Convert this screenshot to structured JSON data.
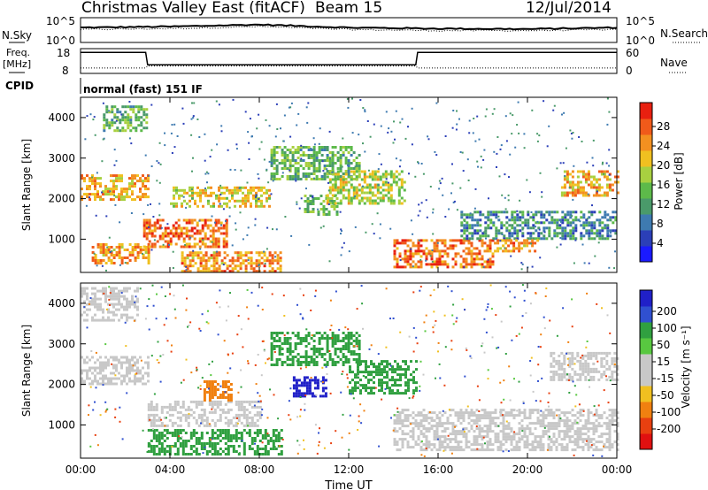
{
  "header": {
    "station": "Christmas Valley East (fitACF)",
    "beam": "Beam 15",
    "date": "12/Jul/2014"
  },
  "sky_panel": {
    "left_label": "N.Sky",
    "right_label": "N.Search",
    "left_ticks": [
      "10^5",
      "10^0"
    ],
    "right_ticks": [
      "10^5",
      "10^0"
    ]
  },
  "freq_panel": {
    "left_label_1": "Freq.",
    "left_label_2": "[MHz]",
    "right_label": "Nave",
    "left_ticks": [
      "18",
      "8"
    ],
    "right_ticks": [
      "60",
      "0"
    ]
  },
  "cpid": {
    "label": "CPID",
    "value": "normal (fast) 151 IF"
  },
  "power_panel": {
    "ylabel": "Slant Range [km]",
    "yticks": [
      "4000",
      "3000",
      "2000",
      "1000"
    ],
    "colorbar_label": "Power [dB]",
    "colorbar_ticks": [
      "28",
      "24",
      "20",
      "16",
      "12",
      "8",
      "4"
    ],
    "colors": [
      "#1a1aff",
      "#2b3fb8",
      "#3e7ab0",
      "#4a9a6a",
      "#5dba4a",
      "#a8d040",
      "#f0c020",
      "#f39020",
      "#f05a1a",
      "#e82010"
    ]
  },
  "velocity_panel": {
    "ylabel": "Slant Range [km]",
    "yticks": [
      "4000",
      "3000",
      "2000",
      "1000"
    ],
    "colorbar_label": "Velocity [m s⁻¹]",
    "colorbar_ticks": [
      "200",
      "100",
      "50",
      "15",
      "-15",
      "-50",
      "-100",
      "-200"
    ],
    "colors": [
      "#2020c8",
      "#3050d0",
      "#30a040",
      "#58c840",
      "#c8c8c8",
      "#c8c8c8",
      "#f0c020",
      "#f08010",
      "#e84010",
      "#e01010"
    ]
  },
  "x_axis": {
    "ticks": [
      "00:00",
      "04:00",
      "08:00",
      "12:00",
      "16:00",
      "20:00",
      "00:00"
    ],
    "label": "Time UT"
  },
  "chart_data": [
    {
      "type": "line",
      "title": "N.Sky / N.Search",
      "x": [
        "00:00",
        "04:00",
        "08:00",
        "12:00",
        "16:00",
        "20:00",
        "24:00"
      ],
      "series": [
        {
          "name": "N.Sky",
          "values": [
            3.0,
            3.2,
            3.6,
            3.0,
            2.8,
            2.7,
            3.0
          ]
        },
        {
          "name": "N.Search",
          "values": [
            2.6,
            2.8,
            3.2,
            2.6,
            2.4,
            2.4,
            2.6
          ]
        }
      ]
    },
    {
      "type": "line",
      "title": "Freq. [MHz] / Nave",
      "x": [
        "00:00",
        "02:55",
        "03:00",
        "15:00",
        "15:05",
        "24:00"
      ],
      "series": [
        {
          "name": "Freq.",
          "values": [
            16.5,
            16.5,
            11.5,
            11.5,
            16.5,
            16.5
          ]
        },
        {
          "name": "Nave",
          "values": [
            13,
            13,
            18,
            18,
            13,
            13
          ]
        }
      ]
    },
    {
      "type": "heatmap",
      "title": "Power [dB]",
      "xlabel": "Time UT",
      "ylabel": "Slant Range [km]",
      "xlim": [
        0,
        24
      ],
      "ylim": [
        180,
        4500
      ],
      "blobs": [
        {
          "t0": 0.0,
          "t1": 3.0,
          "r0": 2000,
          "r1": 2600,
          "v": 22
        },
        {
          "t0": 0.5,
          "t1": 3.0,
          "r0": 400,
          "r1": 900,
          "v": 24
        },
        {
          "t0": 2.8,
          "t1": 6.5,
          "r0": 800,
          "r1": 1500,
          "v": 26
        },
        {
          "t0": 4.0,
          "t1": 8.5,
          "r0": 1800,
          "r1": 2300,
          "v": 20
        },
        {
          "t0": 4.5,
          "t1": 9.0,
          "r0": 200,
          "r1": 700,
          "v": 24
        },
        {
          "t0": 8.5,
          "t1": 12.5,
          "r0": 2500,
          "r1": 3300,
          "v": 14
        },
        {
          "t0": 10.0,
          "t1": 11.5,
          "r0": 1600,
          "r1": 2100,
          "v": 14
        },
        {
          "t0": 11.0,
          "t1": 14.5,
          "r0": 1900,
          "r1": 2700,
          "v": 18
        },
        {
          "t0": 14.0,
          "t1": 18.5,
          "r0": 300,
          "r1": 1000,
          "v": 26
        },
        {
          "t0": 17.0,
          "t1": 24.0,
          "r0": 1000,
          "r1": 1700,
          "v": 10
        },
        {
          "t0": 18.5,
          "t1": 20.5,
          "r0": 700,
          "r1": 1000,
          "v": 24
        },
        {
          "t0": 21.5,
          "t1": 24.0,
          "r0": 2100,
          "r1": 2700,
          "v": 22
        },
        {
          "t0": 1.0,
          "t1": 3.0,
          "r0": 3700,
          "r1": 4300,
          "v": 14
        }
      ]
    },
    {
      "type": "heatmap",
      "title": "Velocity [m s⁻¹]",
      "xlabel": "Time UT",
      "ylabel": "Slant Range [km]",
      "xlim": [
        0,
        24
      ],
      "ylim": [
        180,
        4500
      ],
      "blobs": [
        {
          "t0": 0.0,
          "t1": 3.0,
          "r0": 2000,
          "r1": 2700,
          "v": 0
        },
        {
          "t0": 3.0,
          "t1": 8.0,
          "r0": 1000,
          "r1": 1600,
          "v": 0
        },
        {
          "t0": 3.0,
          "t1": 9.0,
          "r0": 300,
          "r1": 900,
          "v": 40
        },
        {
          "t0": 5.5,
          "t1": 6.8,
          "r0": 1600,
          "r1": 2100,
          "v": -40
        },
        {
          "t0": 8.5,
          "t1": 12.5,
          "r0": 2500,
          "r1": 3300,
          "v": 40
        },
        {
          "t0": 9.5,
          "t1": 11.0,
          "r0": 1700,
          "r1": 2200,
          "v": 200
        },
        {
          "t0": 12.0,
          "t1": 15.0,
          "r0": 1800,
          "r1": 2600,
          "v": 60
        },
        {
          "t0": 14.0,
          "t1": 24.0,
          "r0": 400,
          "r1": 1400,
          "v": 0
        },
        {
          "t0": 21.0,
          "t1": 24.0,
          "r0": 2100,
          "r1": 2800,
          "v": 0
        },
        {
          "t0": 0.0,
          "t1": 2.5,
          "r0": 3600,
          "r1": 4400,
          "v": 0
        }
      ]
    }
  ]
}
